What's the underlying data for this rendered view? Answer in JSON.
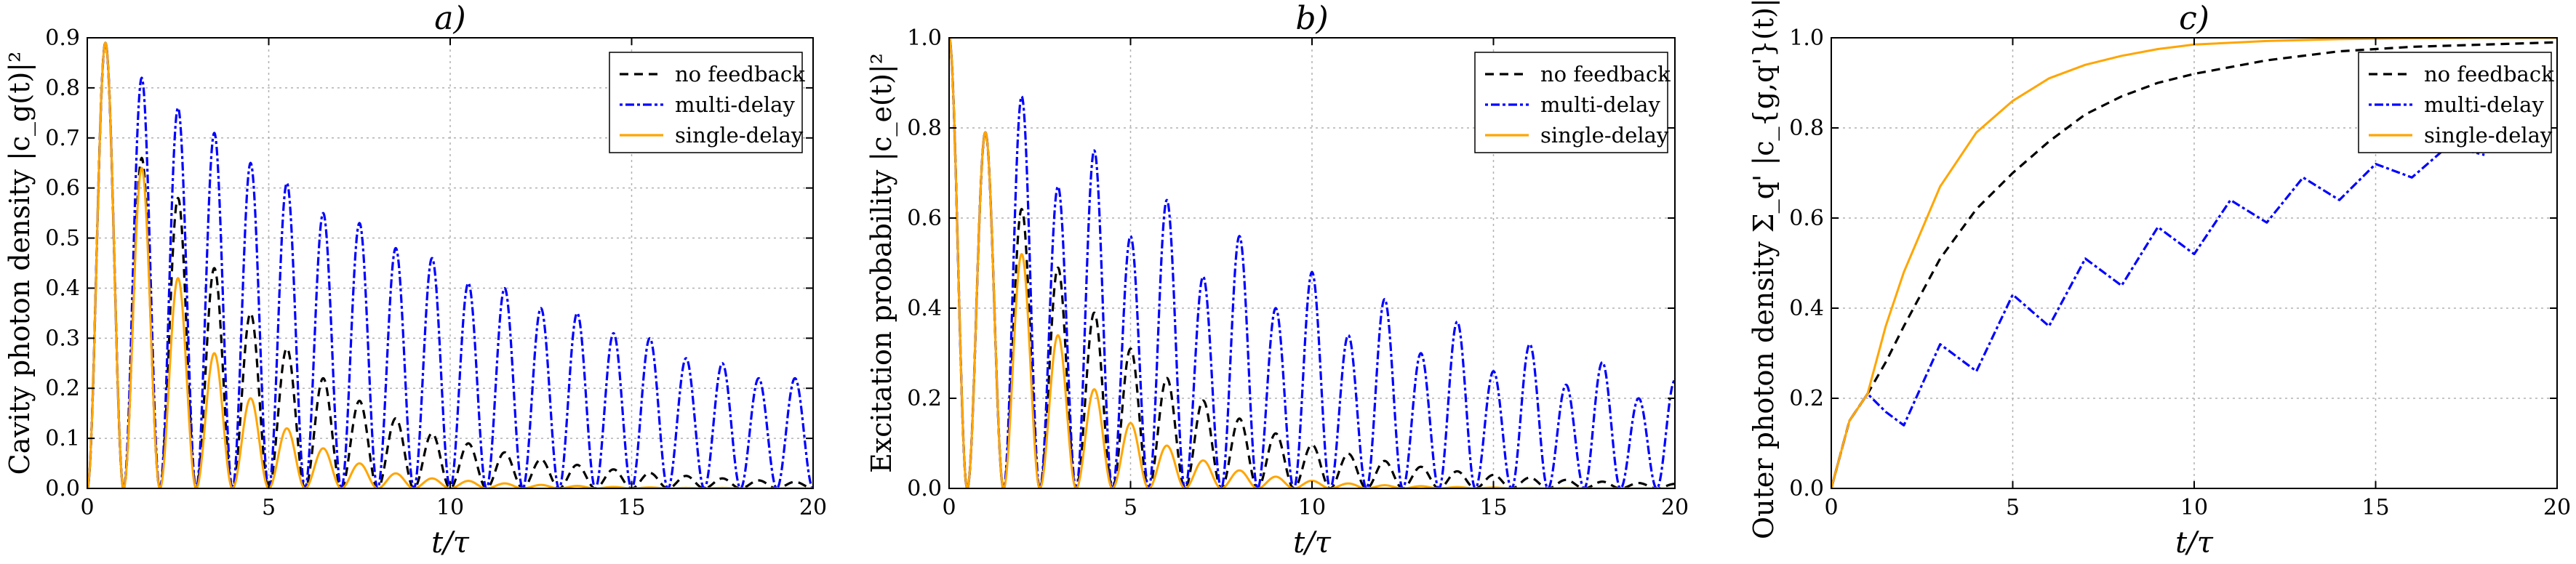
{
  "chart_data": [
    {
      "type": "line",
      "title": "a)",
      "ylabel": "Cavity photon density |c_g(t)|²",
      "xlabel": "t/τ",
      "xlim": [
        0,
        20
      ],
      "ylim": [
        0,
        0.9
      ],
      "x_ticks": [
        "0",
        "5",
        "10",
        "15",
        "20"
      ],
      "y_ticks": [
        "0.0",
        "0.1",
        "0.2",
        "0.3",
        "0.4",
        "0.5",
        "0.6",
        "0.7",
        "0.8",
        "0.9"
      ],
      "grid": true,
      "legend_position": "top-right",
      "period": 1.0,
      "first_peak": 0.5,
      "series": [
        {
          "name": "no feedback",
          "color": "#000000",
          "style": "dashed",
          "peaks": [
            0.89,
            0.66,
            0.58,
            0.44,
            0.35,
            0.28,
            0.22,
            0.175,
            0.14,
            0.11,
            0.09,
            0.072,
            0.058,
            0.047,
            0.038,
            0.031,
            0.025,
            0.02,
            0.016,
            0.013
          ]
        },
        {
          "name": "multi-delay",
          "color": "#0000ff",
          "style": "dotted",
          "peaks": [
            0.89,
            0.82,
            0.76,
            0.71,
            0.65,
            0.61,
            0.55,
            0.53,
            0.48,
            0.46,
            0.41,
            0.4,
            0.36,
            0.35,
            0.31,
            0.3,
            0.26,
            0.25,
            0.22,
            0.22
          ]
        },
        {
          "name": "single-delay",
          "color": "#ffa500",
          "style": "solid",
          "peaks": [
            0.89,
            0.64,
            0.42,
            0.27,
            0.18,
            0.12,
            0.08,
            0.05,
            0.03,
            0.02,
            0.015,
            0.01,
            0.007,
            0.005,
            0.003,
            0.002,
            0.001,
            0.001,
            0.0,
            0.0
          ]
        }
      ]
    },
    {
      "type": "line",
      "title": "b)",
      "ylabel": "Excitation probability |c_e(t)|²",
      "xlabel": "t/τ",
      "xlim": [
        0,
        20
      ],
      "ylim": [
        0,
        1.0
      ],
      "x_ticks": [
        "0",
        "5",
        "10",
        "15",
        "20"
      ],
      "y_ticks": [
        "0.0",
        "0.2",
        "0.4",
        "0.6",
        "0.8",
        "1.0"
      ],
      "grid": true,
      "legend_position": "top-right",
      "period": 1.0,
      "first_peak": 0.0,
      "series": [
        {
          "name": "no feedback",
          "color": "#000000",
          "style": "dashed",
          "peaks": [
            1.0,
            0.79,
            0.62,
            0.49,
            0.39,
            0.31,
            0.245,
            0.195,
            0.155,
            0.122,
            0.097,
            0.077,
            0.061,
            0.048,
            0.038,
            0.03,
            0.024,
            0.019,
            0.015,
            0.012,
            0.01
          ]
        },
        {
          "name": "multi-delay",
          "color": "#0000ff",
          "style": "dotted",
          "peaks": [
            1.0,
            0.79,
            0.87,
            0.67,
            0.75,
            0.56,
            0.64,
            0.47,
            0.56,
            0.4,
            0.48,
            0.34,
            0.42,
            0.3,
            0.37,
            0.26,
            0.32,
            0.23,
            0.28,
            0.2,
            0.24
          ]
        },
        {
          "name": "single-delay",
          "color": "#ffa500",
          "style": "solid",
          "peaks": [
            1.0,
            0.79,
            0.52,
            0.34,
            0.22,
            0.145,
            0.095,
            0.062,
            0.04,
            0.026,
            0.017,
            0.011,
            0.007,
            0.005,
            0.003,
            0.002,
            0.001,
            0.001,
            0.0,
            0.0,
            0.0
          ]
        }
      ]
    },
    {
      "type": "line",
      "title": "c)",
      "ylabel": "Outer photon density Σ_q' |c_{g,q'}(t)|²",
      "xlabel": "t/τ",
      "xlim": [
        0,
        20
      ],
      "ylim": [
        0,
        1.0
      ],
      "x_ticks": [
        "0",
        "5",
        "10",
        "15",
        "20"
      ],
      "y_ticks": [
        "0.0",
        "0.2",
        "0.4",
        "0.6",
        "0.8",
        "1.0"
      ],
      "grid": true,
      "legend_position": "top-right",
      "series": [
        {
          "name": "no feedback",
          "color": "#000000",
          "style": "dashed",
          "x": [
            0,
            0.5,
            1,
            1.5,
            2,
            3,
            4,
            5,
            6,
            7,
            8,
            9,
            10,
            12,
            14,
            16,
            18,
            20
          ],
          "y": [
            0,
            0.15,
            0.21,
            0.28,
            0.36,
            0.51,
            0.62,
            0.7,
            0.77,
            0.83,
            0.87,
            0.9,
            0.92,
            0.95,
            0.97,
            0.98,
            0.985,
            0.99
          ]
        },
        {
          "name": "multi-delay",
          "color": "#0000ff",
          "style": "dotted",
          "x": [
            0,
            0.5,
            1,
            1.5,
            2,
            3,
            4,
            5,
            6,
            7,
            8,
            9,
            10,
            11,
            12,
            13,
            14,
            15,
            16,
            17,
            18
          ],
          "y": [
            0,
            0.15,
            0.21,
            0.17,
            0.14,
            0.32,
            0.26,
            0.43,
            0.36,
            0.51,
            0.45,
            0.58,
            0.52,
            0.64,
            0.59,
            0.69,
            0.64,
            0.72,
            0.69,
            0.76,
            0.74
          ]
        },
        {
          "name": "single-delay",
          "color": "#ffa500",
          "style": "solid",
          "x": [
            0,
            0.5,
            1,
            1.5,
            2,
            3,
            4,
            5,
            6,
            7,
            8,
            9,
            10,
            12,
            14,
            16,
            18,
            20
          ],
          "y": [
            0,
            0.15,
            0.21,
            0.36,
            0.48,
            0.67,
            0.79,
            0.86,
            0.91,
            0.94,
            0.96,
            0.975,
            0.985,
            0.993,
            0.997,
            0.999,
            1.0,
            1.0
          ]
        }
      ]
    }
  ]
}
